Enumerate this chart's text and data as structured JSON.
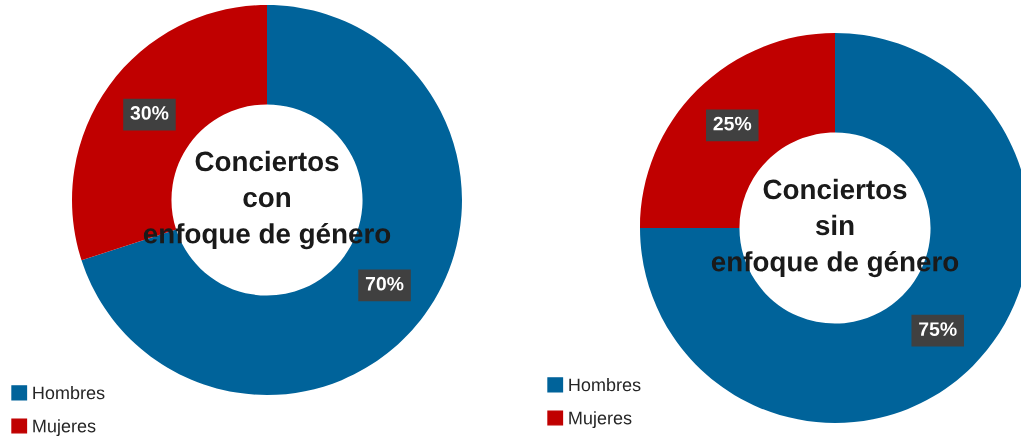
{
  "chart_data": [
    {
      "type": "donut",
      "title": "Conciertos\ncon\nenfoque de género",
      "categories": [
        "Hombres",
        "Mujeres"
      ],
      "values": [
        70,
        30
      ],
      "colors": [
        "#00639a",
        "#c00000"
      ],
      "value_labels": [
        "70%",
        "30%"
      ],
      "legend": "bottom left"
    },
    {
      "type": "donut",
      "title": "Conciertos\nsin\nenfoque de género",
      "categories": [
        "Hombres",
        "Mujeres"
      ],
      "values": [
        75,
        25
      ],
      "colors": [
        "#00639a",
        "#c00000"
      ],
      "value_labels": [
        "75%",
        "25%"
      ],
      "legend": "bottom left"
    }
  ]
}
